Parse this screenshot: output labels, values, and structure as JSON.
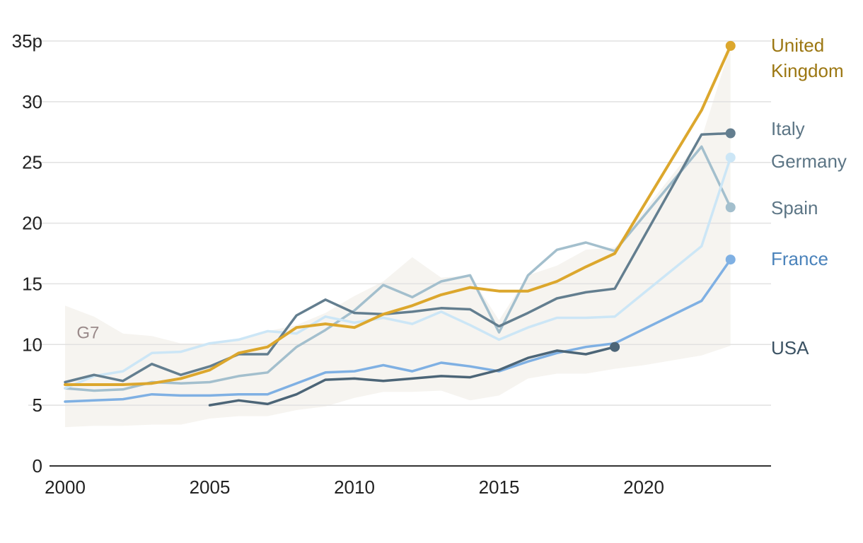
{
  "chart_data": {
    "type": "line",
    "x_range": [
      2000,
      2024.4
    ],
    "y_range": [
      0,
      35
    ],
    "yticks": [
      0,
      5,
      10,
      15,
      20,
      25,
      30,
      35
    ],
    "ytick_labels": [
      "0",
      "5",
      "10",
      "15",
      "20",
      "25",
      "30",
      "35p"
    ],
    "xticks": [
      2000,
      2005,
      2010,
      2015,
      2020
    ],
    "xtick_labels": [
      "2000",
      "2005",
      "2010",
      "2015",
      "2020"
    ],
    "grid": true,
    "band": {
      "name": "G7",
      "color": "#f6f4f0",
      "label_color": "#9a8a8a",
      "x": [
        2000,
        2001,
        2002,
        2003,
        2004,
        2005,
        2006,
        2007,
        2008,
        2009,
        2010,
        2011,
        2012,
        2013,
        2014,
        2015,
        2016,
        2017,
        2018,
        2019,
        2020,
        2021,
        2022,
        2023
      ],
      "upper": [
        13.2,
        12.3,
        10.9,
        10.7,
        10.1,
        10.1,
        10.4,
        11.1,
        11.6,
        12.6,
        14.0,
        15.2,
        17.2,
        15.5,
        15.7,
        12.0,
        15.7,
        16.5,
        17.8,
        18.0,
        21.0,
        24.0,
        27.0,
        34.6
      ],
      "lower": [
        3.2,
        3.3,
        3.3,
        3.4,
        3.4,
        3.9,
        4.1,
        4.1,
        4.6,
        4.9,
        5.6,
        6.1,
        6.1,
        6.2,
        5.4,
        5.8,
        7.2,
        7.6,
        7.6,
        8.0,
        8.3,
        8.7,
        9.1,
        9.9
      ]
    },
    "series": [
      {
        "name": "United Kingdom",
        "label_lines": [
          "United",
          "Kingdom"
        ],
        "color": "#dca72d",
        "label_color": "#9c7712",
        "width": 4,
        "x": [
          2000,
          2001,
          2002,
          2003,
          2004,
          2005,
          2006,
          2007,
          2008,
          2009,
          2010,
          2011,
          2012,
          2013,
          2014,
          2015,
          2016,
          2017,
          2018,
          2019,
          2022,
          2023
        ],
        "y": [
          6.7,
          6.7,
          6.7,
          6.8,
          7.2,
          7.9,
          9.3,
          9.8,
          11.4,
          11.7,
          11.4,
          12.5,
          13.2,
          14.1,
          14.7,
          14.4,
          14.4,
          15.2,
          16.4,
          17.5,
          29.3,
          34.6
        ],
        "end_dot": true
      },
      {
        "name": "Italy",
        "label_lines": [
          "Italy"
        ],
        "color": "#637e8f",
        "label_color": "#5c7585",
        "width": 3.5,
        "x": [
          2000,
          2001,
          2002,
          2003,
          2004,
          2005,
          2006,
          2007,
          2008,
          2009,
          2010,
          2011,
          2012,
          2013,
          2014,
          2015,
          2016,
          2017,
          2018,
          2019,
          2022,
          2023
        ],
        "y": [
          6.9,
          7.5,
          7.0,
          8.4,
          7.5,
          8.2,
          9.2,
          9.2,
          12.4,
          13.7,
          12.6,
          12.5,
          12.7,
          13.0,
          12.9,
          11.5,
          12.6,
          13.8,
          14.3,
          14.6,
          27.3,
          27.4
        ],
        "end_dot": true
      },
      {
        "name": "Germany",
        "label_lines": [
          "Germany"
        ],
        "color": "#cce6f6",
        "label_color": "#5c7585",
        "width": 3.5,
        "x": [
          2000,
          2001,
          2002,
          2003,
          2004,
          2005,
          2006,
          2007,
          2008,
          2009,
          2010,
          2011,
          2012,
          2013,
          2014,
          2015,
          2016,
          2017,
          2018,
          2019,
          2022,
          2023
        ],
        "y": [
          6.4,
          7.4,
          7.8,
          9.3,
          9.4,
          10.1,
          10.4,
          11.1,
          10.9,
          12.3,
          11.8,
          12.2,
          11.7,
          12.7,
          11.6,
          10.4,
          11.4,
          12.2,
          12.2,
          12.3,
          18.1,
          25.4
        ],
        "end_dot": true
      },
      {
        "name": "Spain",
        "label_lines": [
          "Spain"
        ],
        "color": "#a3bfcd",
        "label_color": "#5c7585",
        "width": 3.5,
        "x": [
          2000,
          2001,
          2002,
          2003,
          2004,
          2005,
          2006,
          2007,
          2008,
          2009,
          2010,
          2011,
          2012,
          2013,
          2014,
          2015,
          2016,
          2017,
          2018,
          2019,
          2022,
          2023
        ],
        "y": [
          6.4,
          6.2,
          6.3,
          6.9,
          6.8,
          6.9,
          7.4,
          7.7,
          9.8,
          11.2,
          12.8,
          14.9,
          13.9,
          15.2,
          15.7,
          11.0,
          15.7,
          17.8,
          18.4,
          17.7,
          26.3,
          21.3
        ],
        "end_dot": true
      },
      {
        "name": "France",
        "label_lines": [
          "France"
        ],
        "color": "#7fb0e3",
        "label_color": "#4b83bb",
        "width": 3.5,
        "x": [
          2000,
          2001,
          2002,
          2003,
          2004,
          2005,
          2006,
          2007,
          2008,
          2009,
          2010,
          2011,
          2012,
          2013,
          2014,
          2015,
          2016,
          2017,
          2018,
          2019,
          2022,
          2023
        ],
        "y": [
          5.3,
          5.4,
          5.5,
          5.9,
          5.8,
          5.8,
          5.9,
          5.9,
          6.8,
          7.7,
          7.8,
          8.3,
          7.8,
          8.5,
          8.2,
          7.8,
          8.6,
          9.3,
          9.8,
          10.1,
          13.6,
          17.0
        ],
        "end_dot": true
      },
      {
        "name": "USA",
        "label_lines": [
          "USA"
        ],
        "color": "#4c6577",
        "label_color": "#3b5263",
        "width": 3.5,
        "x": [
          2005,
          2006,
          2007,
          2008,
          2009,
          2010,
          2011,
          2012,
          2013,
          2014,
          2015,
          2016,
          2017,
          2018,
          2019
        ],
        "y": [
          5.0,
          5.4,
          5.1,
          5.9,
          7.1,
          7.2,
          7.0,
          7.2,
          7.4,
          7.3,
          7.9,
          8.9,
          9.5,
          9.2,
          9.8
        ],
        "end_dot": true
      }
    ]
  }
}
